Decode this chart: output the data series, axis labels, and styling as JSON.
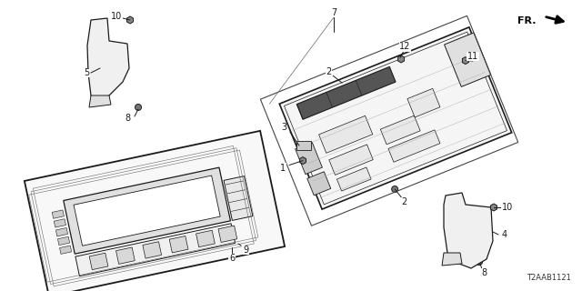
{
  "diagram_code": "T2AAB1121",
  "background_color": "#ffffff",
  "line_color": "#1a1a1a",
  "fig_width": 6.4,
  "fig_height": 3.2
}
